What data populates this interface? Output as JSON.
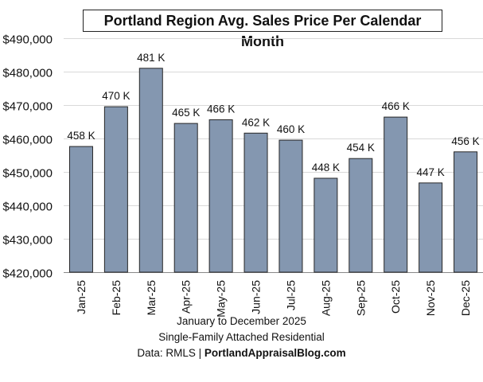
{
  "chart_data": {
    "type": "bar",
    "title": "Portland Region Avg. Sales Price Per Calendar Month",
    "categories": [
      "Jan-25",
      "Feb-25",
      "Mar-25",
      "Apr-25",
      "May-25",
      "Jun-25",
      "Jul-25",
      "Aug-25",
      "Sep-25",
      "Oct-25",
      "Nov-25",
      "Dec-25"
    ],
    "values": [
      457600,
      469500,
      481000,
      464500,
      465600,
      461600,
      459500,
      448100,
      454000,
      466400,
      446700,
      456000
    ],
    "data_labels": [
      "458 K",
      "470 K",
      "481 K",
      "465 K",
      "466 K",
      "462 K",
      "460 K",
      "448 K",
      "454 K",
      "466 K",
      "447 K",
      "456 K"
    ],
    "ylim": [
      420000,
      490000
    ],
    "yticks": [
      420000,
      430000,
      440000,
      450000,
      460000,
      470000,
      480000,
      490000
    ],
    "ytick_labels": [
      "$420,000",
      "$430,000",
      "$440,000",
      "$450,000",
      "$460,000",
      "$470,000",
      "$480,000",
      "$490,000"
    ],
    "xlabel": "",
    "ylabel": "",
    "grid": true,
    "bar_color": "#8497b0",
    "bar_edge_color": "#262626"
  },
  "footer": {
    "line1": "January to December 2025",
    "line2": "Single-Family Attached Residential",
    "line3_prefix": "Data: RMLS | ",
    "line3_site": "PortlandAppraisalBlog.com"
  }
}
